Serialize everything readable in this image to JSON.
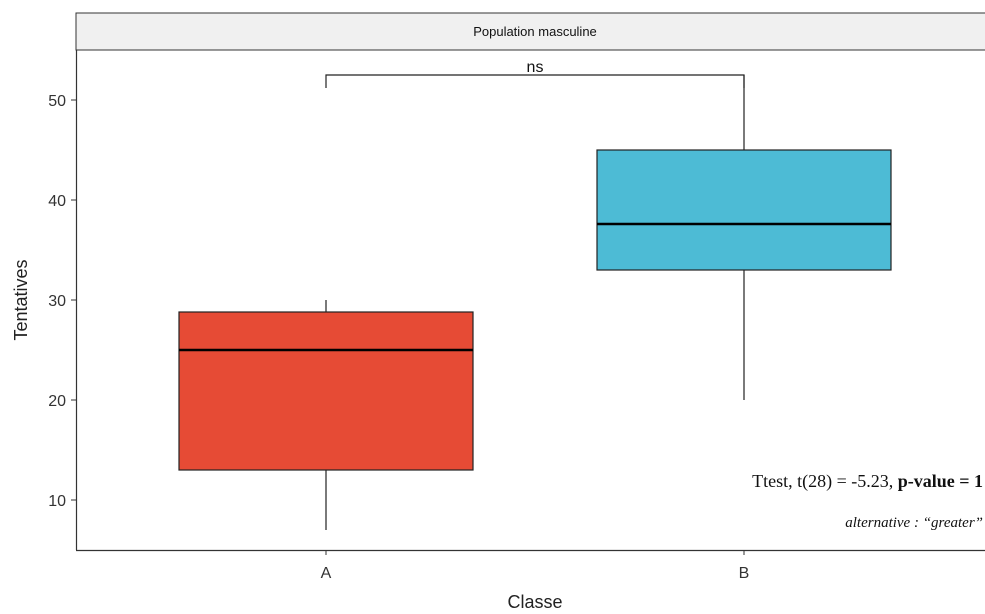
{
  "chart_data": {
    "type": "boxplot",
    "facet_title": "Population masculine",
    "xlabel": "Classe",
    "ylabel": "Tentatives",
    "categories": [
      "A",
      "B"
    ],
    "ylim": [
      5,
      55
    ],
    "yticks": [
      10,
      20,
      30,
      40,
      50
    ],
    "boxes": [
      {
        "category": "A",
        "whisker_low": 7,
        "q1": 13,
        "median": 25,
        "q3": 28.8,
        "whisker_high": 30,
        "color": "#E64B35"
      },
      {
        "category": "B",
        "whisker_low": 20,
        "q1": 33,
        "median": 37.6,
        "q3": 45,
        "whisker_high": 52.5,
        "color": "#4DBBD5"
      }
    ],
    "significance": {
      "label": "ns",
      "y": 52.5,
      "from": "A",
      "to": "B"
    },
    "annotation": {
      "stat_prefix": "Ttest, t(28) = -5.23, ",
      "stat_bold": "p-value = 1",
      "alternative": "alternative : “greater”"
    },
    "grid": false
  }
}
